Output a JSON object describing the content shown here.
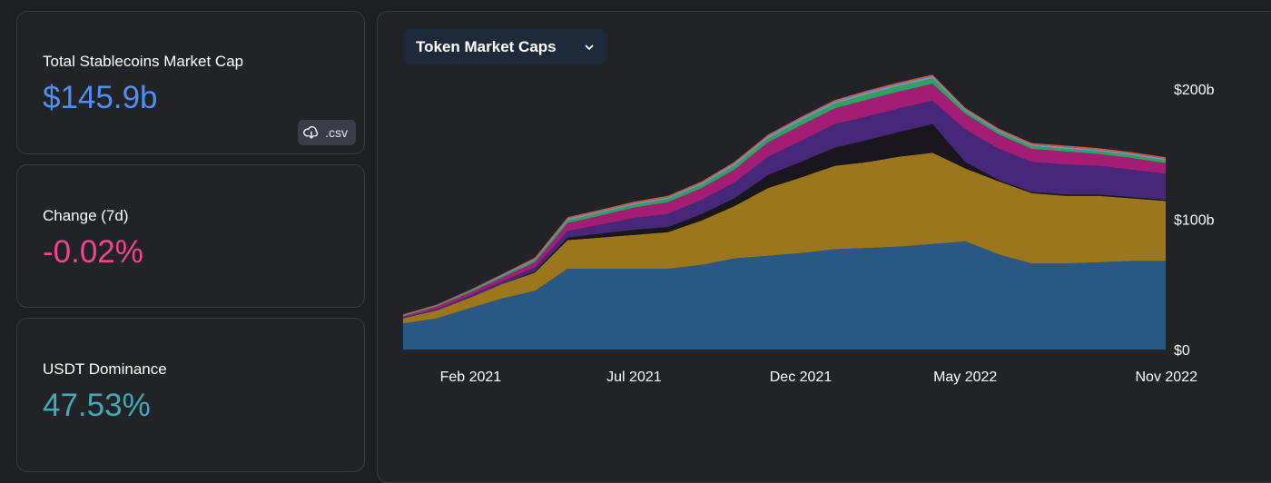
{
  "stats": [
    {
      "label": "Total Stablecoins Market Cap",
      "value": "$145.9b",
      "color": "#4f8ff2"
    },
    {
      "label": "Change (7d)",
      "value": "-0.02%",
      "color": "#f0468f"
    },
    {
      "label": "USDT Dominance",
      "value": "47.53%",
      "color": "#44a9b5"
    }
  ],
  "csv_button": {
    "label": ".csv",
    "icon": "cloud-download-icon"
  },
  "dropdown": {
    "label": "Token Market Caps",
    "icon": "chevron-down-icon"
  },
  "chart_data": {
    "type": "area",
    "stacked": true,
    "x": [
      "2020-12-01",
      "2021-01-01",
      "2021-02-01",
      "2021-03-01",
      "2021-04-01",
      "2021-05-01",
      "2021-06-01",
      "2021-07-01",
      "2021-08-01",
      "2021-09-01",
      "2021-10-01",
      "2021-11-01",
      "2021-12-01",
      "2022-01-01",
      "2022-02-01",
      "2022-03-01",
      "2022-04-01",
      "2022-05-01",
      "2022-06-01",
      "2022-07-01",
      "2022-08-01",
      "2022-09-01",
      "2022-10-01",
      "2022-11-01"
    ],
    "series": [
      {
        "color": "#2a5885",
        "values": [
          20,
          24,
          32,
          39,
          45,
          62,
          62,
          62,
          62,
          65,
          70,
          72,
          74,
          77,
          78,
          79,
          81,
          83,
          73,
          66,
          66,
          67,
          68,
          68
        ]
      },
      {
        "color": "#9c761d",
        "values": [
          4,
          6,
          8,
          11,
          14,
          22,
          24,
          26,
          28,
          34,
          40,
          52,
          58,
          64,
          66,
          69,
          70,
          56,
          56,
          54,
          52,
          51,
          48,
          46
        ]
      },
      {
        "color": "#1a161d",
        "values": [
          0,
          0,
          0,
          0,
          1,
          2,
          3,
          4,
          4,
          5,
          6,
          10,
          12,
          14,
          17,
          19,
          22,
          5,
          1,
          1,
          1,
          1,
          1,
          1
        ]
      },
      {
        "color": "#472779",
        "values": [
          0.5,
          1,
          1.5,
          2,
          3,
          5,
          7,
          9,
          10,
          11,
          12,
          14,
          16,
          18,
          18,
          18,
          18,
          25,
          24,
          23,
          23,
          22,
          21,
          20
        ]
      },
      {
        "color": "#a31d74",
        "values": [
          1,
          2,
          2.5,
          3,
          4,
          6,
          7,
          8,
          9,
          9,
          10,
          11,
          12,
          12,
          13,
          13,
          13,
          12,
          11,
          10,
          10,
          9,
          9,
          8
        ]
      },
      {
        "color": "#2aa65c",
        "values": [
          0.5,
          0.5,
          1,
          1,
          1.5,
          2,
          2,
          2,
          2.5,
          2.5,
          3,
          3,
          3.5,
          3.5,
          4,
          4,
          4,
          2,
          2,
          2,
          2,
          2,
          2,
          2
        ]
      },
      {
        "color": "#7f8db6",
        "values": [
          0.5,
          0.5,
          0.5,
          1,
          1,
          1.5,
          1.5,
          1.5,
          1.5,
          1.5,
          2,
          2,
          2,
          2,
          2,
          2,
          2,
          1.5,
          1.5,
          1.5,
          1.5,
          1.5,
          1.5,
          1.5
        ]
      },
      {
        "color": "#cd5a3f",
        "values": [
          0.5,
          0.5,
          0.5,
          0.5,
          1,
          1,
          1,
          1,
          1,
          1,
          1,
          1,
          1,
          1,
          1,
          1,
          1,
          1,
          1,
          1,
          1,
          1,
          1,
          1
        ]
      }
    ],
    "x_tick_labels": [
      "Feb 2021",
      "Jul 2021",
      "Dec 2021",
      "May 2022",
      "Nov 2022"
    ],
    "x_ticks": [
      "2021-02-01",
      "2021-07-01",
      "2021-12-01",
      "2022-05-01",
      "2022-11-01"
    ],
    "y_tick_labels": [
      "$200b",
      "$100b",
      "$0"
    ],
    "y_ticks": [
      200,
      100,
      0
    ],
    "ylim": [
      0,
      200
    ],
    "xlim": [
      "2020-12-01",
      "2022-11-01"
    ],
    "grid": false
  }
}
